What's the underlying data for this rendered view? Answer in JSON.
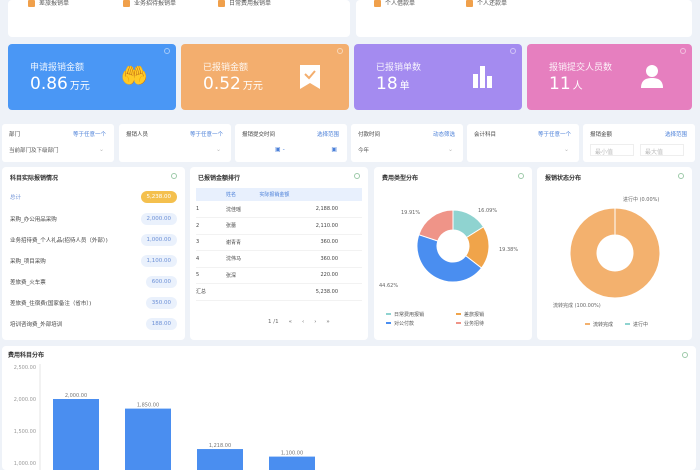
{
  "quick_links": {
    "left": [
      "差旅报销单",
      "业务招待报销单",
      "日常费用报销单"
    ],
    "right": [
      "个人借款单",
      "个人还款单"
    ]
  },
  "stats": [
    {
      "label": "申请报销金额",
      "value": "0.86",
      "unit": "万元",
      "color": "#4a97f5",
      "icon": "hand-money-icon"
    },
    {
      "label": "已报销金额",
      "value": "0.52",
      "unit": "万元",
      "color": "#f3ae6e",
      "icon": "check-bookmark-icon"
    },
    {
      "label": "已报销单数",
      "value": "18",
      "unit": "单",
      "color": "#a48bf0",
      "icon": "bar-chart-icon"
    },
    {
      "label": "报销提交人员数",
      "value": "11",
      "unit": "人",
      "color": "#e67fbf",
      "icon": "person-icon"
    }
  ],
  "filters": [
    {
      "label": "部门",
      "op": "等于任意一个",
      "value": "当前部门及下级部门"
    },
    {
      "label": "报销人员",
      "op": "等于任意一个",
      "value": ""
    },
    {
      "label": "报销提交时间",
      "op": "选择范围",
      "value": ""
    },
    {
      "label": "付款时间",
      "op": "动态筛选",
      "value": "今年"
    },
    {
      "label": "会计科目",
      "op": "等于任意一个",
      "value": ""
    },
    {
      "label": "报销金额",
      "op": "选择范围",
      "min": "最小值",
      "max": "最大值"
    }
  ],
  "subjects": {
    "title": "科目实际报销情况",
    "total_label": "总计",
    "total": "5,238.00",
    "items": [
      {
        "name": "采购_办公用品采购",
        "value": "2,000.00"
      },
      {
        "name": "业务招待费_个人礼品(招待人员（外部）)",
        "value": "1,000.00"
      },
      {
        "name": "采购_项目采购",
        "value": "1,100.00"
      },
      {
        "name": "差旅费_火车票",
        "value": "600.00"
      },
      {
        "name": "差旅费_住宿费(国家备注（省市）)",
        "value": "350.00"
      },
      {
        "name": "培训咨询费_外部培训",
        "value": "188.00"
      }
    ]
  },
  "ranking": {
    "title": "已报销金额排行",
    "columns": [
      "姓名",
      "实际报销金额"
    ],
    "rows": [
      {
        "rank": "1",
        "name": "沈佳瑶",
        "amount": "2,188.00"
      },
      {
        "rank": "2",
        "name": "张蕾",
        "amount": "2,110.00"
      },
      {
        "rank": "3",
        "name": "谢青青",
        "amount": "360.00"
      },
      {
        "rank": "4",
        "name": "沈伟马",
        "amount": "360.00"
      },
      {
        "rank": "5",
        "name": "张深",
        "amount": "220.00"
      }
    ],
    "total_label": "汇总",
    "total": "5,238.00",
    "page": "1",
    "pages": "/1"
  },
  "chart_data": [
    {
      "type": "pie",
      "title": "费用类型分布",
      "donut": true,
      "slices": [
        {
          "name": "日常费用报销",
          "value": 16.09,
          "label": "16.09%",
          "color": "#8fd3d0"
        },
        {
          "name": "差旅报销",
          "value": 19.38,
          "label": "19.38%",
          "color": "#f0a44a"
        },
        {
          "name": "对公付款",
          "value": 44.62,
          "label": "44.62%",
          "color": "#4a8ef0"
        },
        {
          "name": "业务招待",
          "value": 19.91,
          "label": "19.91%",
          "color": "#ef9488"
        }
      ],
      "legend": "bottom"
    },
    {
      "type": "pie",
      "title": "报销状态分布",
      "donut": true,
      "slices": [
        {
          "name": "流转完成",
          "value": 100,
          "label": "流转完成 (100.00%)",
          "color": "#f3b16e"
        },
        {
          "name": "进行中",
          "value": 0,
          "label": "进行中 (0.00%)",
          "color": "#8fd3d0"
        }
      ],
      "legend": "bottom"
    },
    {
      "type": "bar",
      "title": "费用科目分布",
      "values": [
        2000,
        1850,
        1218,
        1100
      ],
      "labels": [
        "2,000.00",
        "1,850.00",
        "1,218.00",
        "1,100.00"
      ],
      "yticks": [
        "2,500.00",
        "2,000.00",
        "1,500.00",
        "1,000.00"
      ],
      "ylim": [
        1000,
        2500
      ],
      "color": "#4a8ef0"
    }
  ]
}
